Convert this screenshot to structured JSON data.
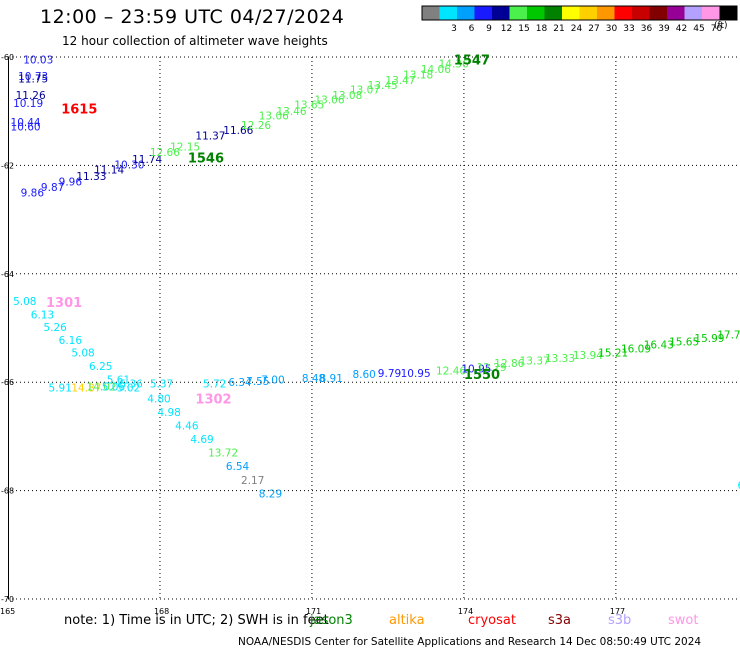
{
  "header": {
    "title": "12:00 – 23:59 UTC 04/27/2024",
    "subtitle": "12 hour collection of altimeter wave heights"
  },
  "color_scale": {
    "unit": "(ft)",
    "bins": [
      {
        "label": "",
        "color": "#808080"
      },
      {
        "label": "3",
        "color": "#00e5ff"
      },
      {
        "label": "6",
        "color": "#00a0ff"
      },
      {
        "label": "9",
        "color": "#1a1aff"
      },
      {
        "label": "12",
        "color": "#000096"
      },
      {
        "label": "15",
        "color": "#4cf04c"
      },
      {
        "label": "18",
        "color": "#00c800"
      },
      {
        "label": "21",
        "color": "#008200"
      },
      {
        "label": "24",
        "color": "#ffff00"
      },
      {
        "label": "27",
        "color": "#ffd000"
      },
      {
        "label": "30",
        "color": "#ff9800"
      },
      {
        "label": "33",
        "color": "#ff0000"
      },
      {
        "label": "36",
        "color": "#c80000"
      },
      {
        "label": "39",
        "color": "#820000"
      },
      {
        "label": "42",
        "color": "#960096"
      },
      {
        "label": "45",
        "color": "#b4a0ff"
      },
      {
        "label": "70",
        "color": "#ff96e6"
      },
      {
        "label": "",
        "color": "#000000"
      }
    ]
  },
  "chart_data": {
    "type": "scatter",
    "x_ticks": [
      "165",
      "168",
      "171",
      "174",
      "177"
    ],
    "y_ticks": [
      "-60",
      "-62",
      "-64",
      "-66",
      "-68",
      "-70"
    ],
    "x_tick_values": [
      165,
      168,
      171,
      174,
      177
    ],
    "y_tick_values": [
      -60,
      -62,
      -64,
      -66,
      -68,
      -70
    ],
    "xlim": [
      165,
      179.45
    ],
    "ylim": [
      -70,
      -60
    ],
    "grid": true,
    "points": [
      {
        "x": 165.3,
        "y": -60.05,
        "label": "10.03",
        "color": "#1a1aff"
      },
      {
        "x": 165.2,
        "y": -60.35,
        "label": "10.73",
        "color": "#1a1aff"
      },
      {
        "x": 165.2,
        "y": -60.4,
        "label": "11.75",
        "color": "#000096"
      },
      {
        "x": 165.15,
        "y": -60.7,
        "label": "11.26",
        "color": "#000096"
      },
      {
        "x": 165.1,
        "y": -60.85,
        "label": "10.19",
        "color": "#1a1aff"
      },
      {
        "x": 165.05,
        "y": -61.2,
        "label": "10.44",
        "color": "#1a1aff"
      },
      {
        "x": 165.05,
        "y": -61.28,
        "label": "10.60",
        "color": "#1a1aff"
      },
      {
        "x": 165.25,
        "y": -62.5,
        "label": "9.86",
        "color": "#1a1aff"
      },
      {
        "x": 165.65,
        "y": -62.4,
        "label": "9.87",
        "color": "#1a1aff"
      },
      {
        "x": 166.0,
        "y": -62.3,
        "label": "9.96",
        "color": "#1a1aff"
      },
      {
        "x": 166.35,
        "y": -62.2,
        "label": "11.33",
        "color": "#000096"
      },
      {
        "x": 166.7,
        "y": -62.08,
        "label": "11.14",
        "color": "#000096"
      },
      {
        "x": 167.1,
        "y": -61.98,
        "label": "10.30",
        "color": "#1a1aff"
      },
      {
        "x": 167.45,
        "y": -61.88,
        "label": "11.74",
        "color": "#000096"
      },
      {
        "x": 167.8,
        "y": -61.75,
        "label": "12.66",
        "color": "#4cf04c"
      },
      {
        "x": 168.2,
        "y": -61.65,
        "label": "12.15",
        "color": "#4cf04c"
      },
      {
        "x": 168.7,
        "y": -61.45,
        "label": "11.37",
        "color": "#000096"
      },
      {
        "x": 169.25,
        "y": -61.35,
        "label": "11.66",
        "color": "#000096"
      },
      {
        "x": 169.6,
        "y": -61.25,
        "label": "12.26",
        "color": "#4cf04c"
      },
      {
        "x": 169.95,
        "y": -61.08,
        "label": "13.06",
        "color": "#4cf04c"
      },
      {
        "x": 170.3,
        "y": -61.0,
        "label": "13.46",
        "color": "#4cf04c"
      },
      {
        "x": 170.65,
        "y": -60.88,
        "label": "13.65",
        "color": "#4cf04c"
      },
      {
        "x": 171.05,
        "y": -60.78,
        "label": "13.06",
        "color": "#4cf04c"
      },
      {
        "x": 171.4,
        "y": -60.7,
        "label": "13.08",
        "color": "#4cf04c"
      },
      {
        "x": 171.75,
        "y": -60.6,
        "label": "13.07",
        "color": "#4cf04c"
      },
      {
        "x": 172.1,
        "y": -60.52,
        "label": "13.45",
        "color": "#4cf04c"
      },
      {
        "x": 172.45,
        "y": -60.42,
        "label": "13.47",
        "color": "#4cf04c"
      },
      {
        "x": 172.8,
        "y": -60.32,
        "label": "13.18",
        "color": "#4cf04c"
      },
      {
        "x": 173.15,
        "y": -60.22,
        "label": "14.06",
        "color": "#4cf04c"
      },
      {
        "x": 173.5,
        "y": -60.12,
        "label": "14.36",
        "color": "#4cf04c"
      },
      {
        "x": 165.1,
        "y": -64.5,
        "label": "5.08",
        "color": "#00e5ff"
      },
      {
        "x": 165.45,
        "y": -64.75,
        "label": "6.13",
        "color": "#00e5ff"
      },
      {
        "x": 165.7,
        "y": -64.98,
        "label": "5.26",
        "color": "#00e5ff"
      },
      {
        "x": 166.0,
        "y": -65.22,
        "label": "6.16",
        "color": "#00e5ff"
      },
      {
        "x": 166.25,
        "y": -65.45,
        "label": "5.08",
        "color": "#00e5ff"
      },
      {
        "x": 166.6,
        "y": -65.7,
        "label": "6.25",
        "color": "#00e5ff"
      },
      {
        "x": 166.95,
        "y": -65.95,
        "label": "5.61",
        "color": "#00e5ff"
      },
      {
        "x": 167.2,
        "y": -66.02,
        "label": "5.36",
        "color": "#00e5ff"
      },
      {
        "x": 165.8,
        "y": -66.1,
        "label": "5.91",
        "color": "#00e5ff"
      },
      {
        "x": 166.25,
        "y": -66.1,
        "label": "14.87",
        "color": "#ffd000"
      },
      {
        "x": 166.55,
        "y": -66.08,
        "label": "14.02",
        "color": "#4cf04c"
      },
      {
        "x": 166.85,
        "y": -66.08,
        "label": "5.06",
        "color": "#00e5ff"
      },
      {
        "x": 167.15,
        "y": -66.1,
        "label": "5.02",
        "color": "#00e5ff"
      },
      {
        "x": 167.8,
        "y": -66.02,
        "label": "5.37",
        "color": "#00e5ff"
      },
      {
        "x": 167.75,
        "y": -66.3,
        "label": "4.80",
        "color": "#00e5ff"
      },
      {
        "x": 167.95,
        "y": -66.55,
        "label": "4.98",
        "color": "#00e5ff"
      },
      {
        "x": 168.3,
        "y": -66.8,
        "label": "4.46",
        "color": "#00e5ff"
      },
      {
        "x": 168.6,
        "y": -67.05,
        "label": "4.69",
        "color": "#00e5ff"
      },
      {
        "x": 168.95,
        "y": -67.3,
        "label": "13.72",
        "color": "#4cf04c"
      },
      {
        "x": 169.3,
        "y": -67.55,
        "label": "6.54",
        "color": "#00a0ff"
      },
      {
        "x": 169.6,
        "y": -67.8,
        "label": "2.17",
        "color": "#808080"
      },
      {
        "x": 169.95,
        "y": -68.05,
        "label": "8.29",
        "color": "#00a0ff"
      },
      {
        "x": 168.85,
        "y": -66.02,
        "label": "5.72",
        "color": "#00e5ff"
      },
      {
        "x": 169.35,
        "y": -66.0,
        "label": "6.34",
        "color": "#00a0ff"
      },
      {
        "x": 169.7,
        "y": -65.98,
        "label": "7.55",
        "color": "#00a0ff"
      },
      {
        "x": 170.0,
        "y": -65.95,
        "label": "7.00",
        "color": "#00a0ff"
      },
      {
        "x": 170.8,
        "y": -65.92,
        "label": "8.48",
        "color": "#00a0ff"
      },
      {
        "x": 171.15,
        "y": -65.92,
        "label": "8.91",
        "color": "#00a0ff"
      },
      {
        "x": 171.8,
        "y": -65.85,
        "label": "8.60",
        "color": "#00a0ff"
      },
      {
        "x": 172.3,
        "y": -65.83,
        "label": "9.79",
        "color": "#1a1aff"
      },
      {
        "x": 172.75,
        "y": -65.83,
        "label": "10.95",
        "color": "#1a1aff"
      },
      {
        "x": 173.45,
        "y": -65.78,
        "label": "12.46",
        "color": "#4cf04c"
      },
      {
        "x": 173.95,
        "y": -65.75,
        "label": "10.95",
        "color": "#1a1aff"
      },
      {
        "x": 174.25,
        "y": -65.72,
        "label": "12.29",
        "color": "#4cf04c"
      },
      {
        "x": 174.6,
        "y": -65.65,
        "label": "12.86",
        "color": "#4cf04c"
      },
      {
        "x": 175.1,
        "y": -65.6,
        "label": "13.37",
        "color": "#4cf04c"
      },
      {
        "x": 175.6,
        "y": -65.55,
        "label": "13.33",
        "color": "#4cf04c"
      },
      {
        "x": 176.15,
        "y": -65.5,
        "label": "13.94",
        "color": "#4cf04c"
      },
      {
        "x": 176.65,
        "y": -65.45,
        "label": "15.21",
        "color": "#00c800"
      },
      {
        "x": 177.1,
        "y": -65.38,
        "label": "16.09",
        "color": "#00c800"
      },
      {
        "x": 177.55,
        "y": -65.3,
        "label": "16.43",
        "color": "#00c800"
      },
      {
        "x": 178.05,
        "y": -65.25,
        "label": "15.65",
        "color": "#00c800"
      },
      {
        "x": 178.55,
        "y": -65.18,
        "label": "15.99",
        "color": "#00c800"
      },
      {
        "x": 179.0,
        "y": -65.12,
        "label": "17.7",
        "color": "#00c800"
      },
      {
        "x": 179.4,
        "y": -67.9,
        "label": "6",
        "color": "#00e5ff"
      }
    ],
    "pass_labels": [
      {
        "x": 166.05,
        "y": -60.95,
        "label": "1615",
        "color": "#ff0000"
      },
      {
        "x": 173.8,
        "y": -60.05,
        "label": "1547",
        "color": "#008200"
      },
      {
        "x": 168.55,
        "y": -61.85,
        "label": "1546",
        "color": "#008200"
      },
      {
        "x": 165.75,
        "y": -64.52,
        "label": "1301",
        "color": "#ff96e6"
      },
      {
        "x": 168.7,
        "y": -66.3,
        "label": "1302",
        "color": "#ff96e6"
      },
      {
        "x": 174.0,
        "y": -65.85,
        "label": "1550",
        "color": "#008200"
      }
    ]
  },
  "footer": {
    "note_prefix": "note:  1) Time is in UTC; 2) SWH is in feet",
    "satellites": [
      {
        "name": "jason3",
        "color": "#008200"
      },
      {
        "name": "altika",
        "color": "#ff9800"
      },
      {
        "name": "cryosat",
        "color": "#ff0000"
      },
      {
        "name": "s3a",
        "color": "#820000"
      },
      {
        "name": "s3b",
        "color": "#b4a0ff"
      },
      {
        "name": "swot",
        "color": "#ff96e6"
      }
    ],
    "credit": "NOAA/NESDIS Center for Satellite Applications and Research    14 Dec 08:50:49 UTC 2024"
  }
}
